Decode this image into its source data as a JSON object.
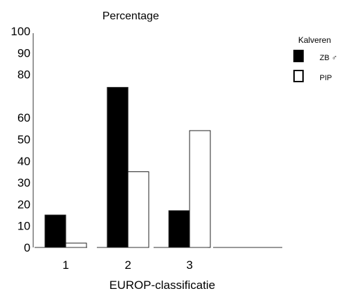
{
  "chart_data": {
    "type": "bar",
    "title": "",
    "ylabel": "Percentage",
    "xlabel": "EUROP-classificatie",
    "categories": [
      "1",
      "2",
      "3"
    ],
    "y_ticks": [
      "100",
      "90",
      "80",
      "60",
      "50",
      "40",
      "30",
      "20",
      "10",
      "0"
    ],
    "ylim": [
      0,
      100
    ],
    "legend": {
      "title": "Kalveren",
      "placement": "top-right",
      "entries": [
        {
          "label": "ZB ♂",
          "fill": "#000000"
        },
        {
          "label": "PIP",
          "fill": "#ffffff"
        }
      ]
    },
    "series": [
      {
        "name": "ZB ♂",
        "color": "#000000",
        "values": [
          15,
          74,
          17
        ]
      },
      {
        "name": "PIP",
        "color": "#ffffff",
        "values": [
          2,
          35,
          54
        ]
      }
    ]
  }
}
